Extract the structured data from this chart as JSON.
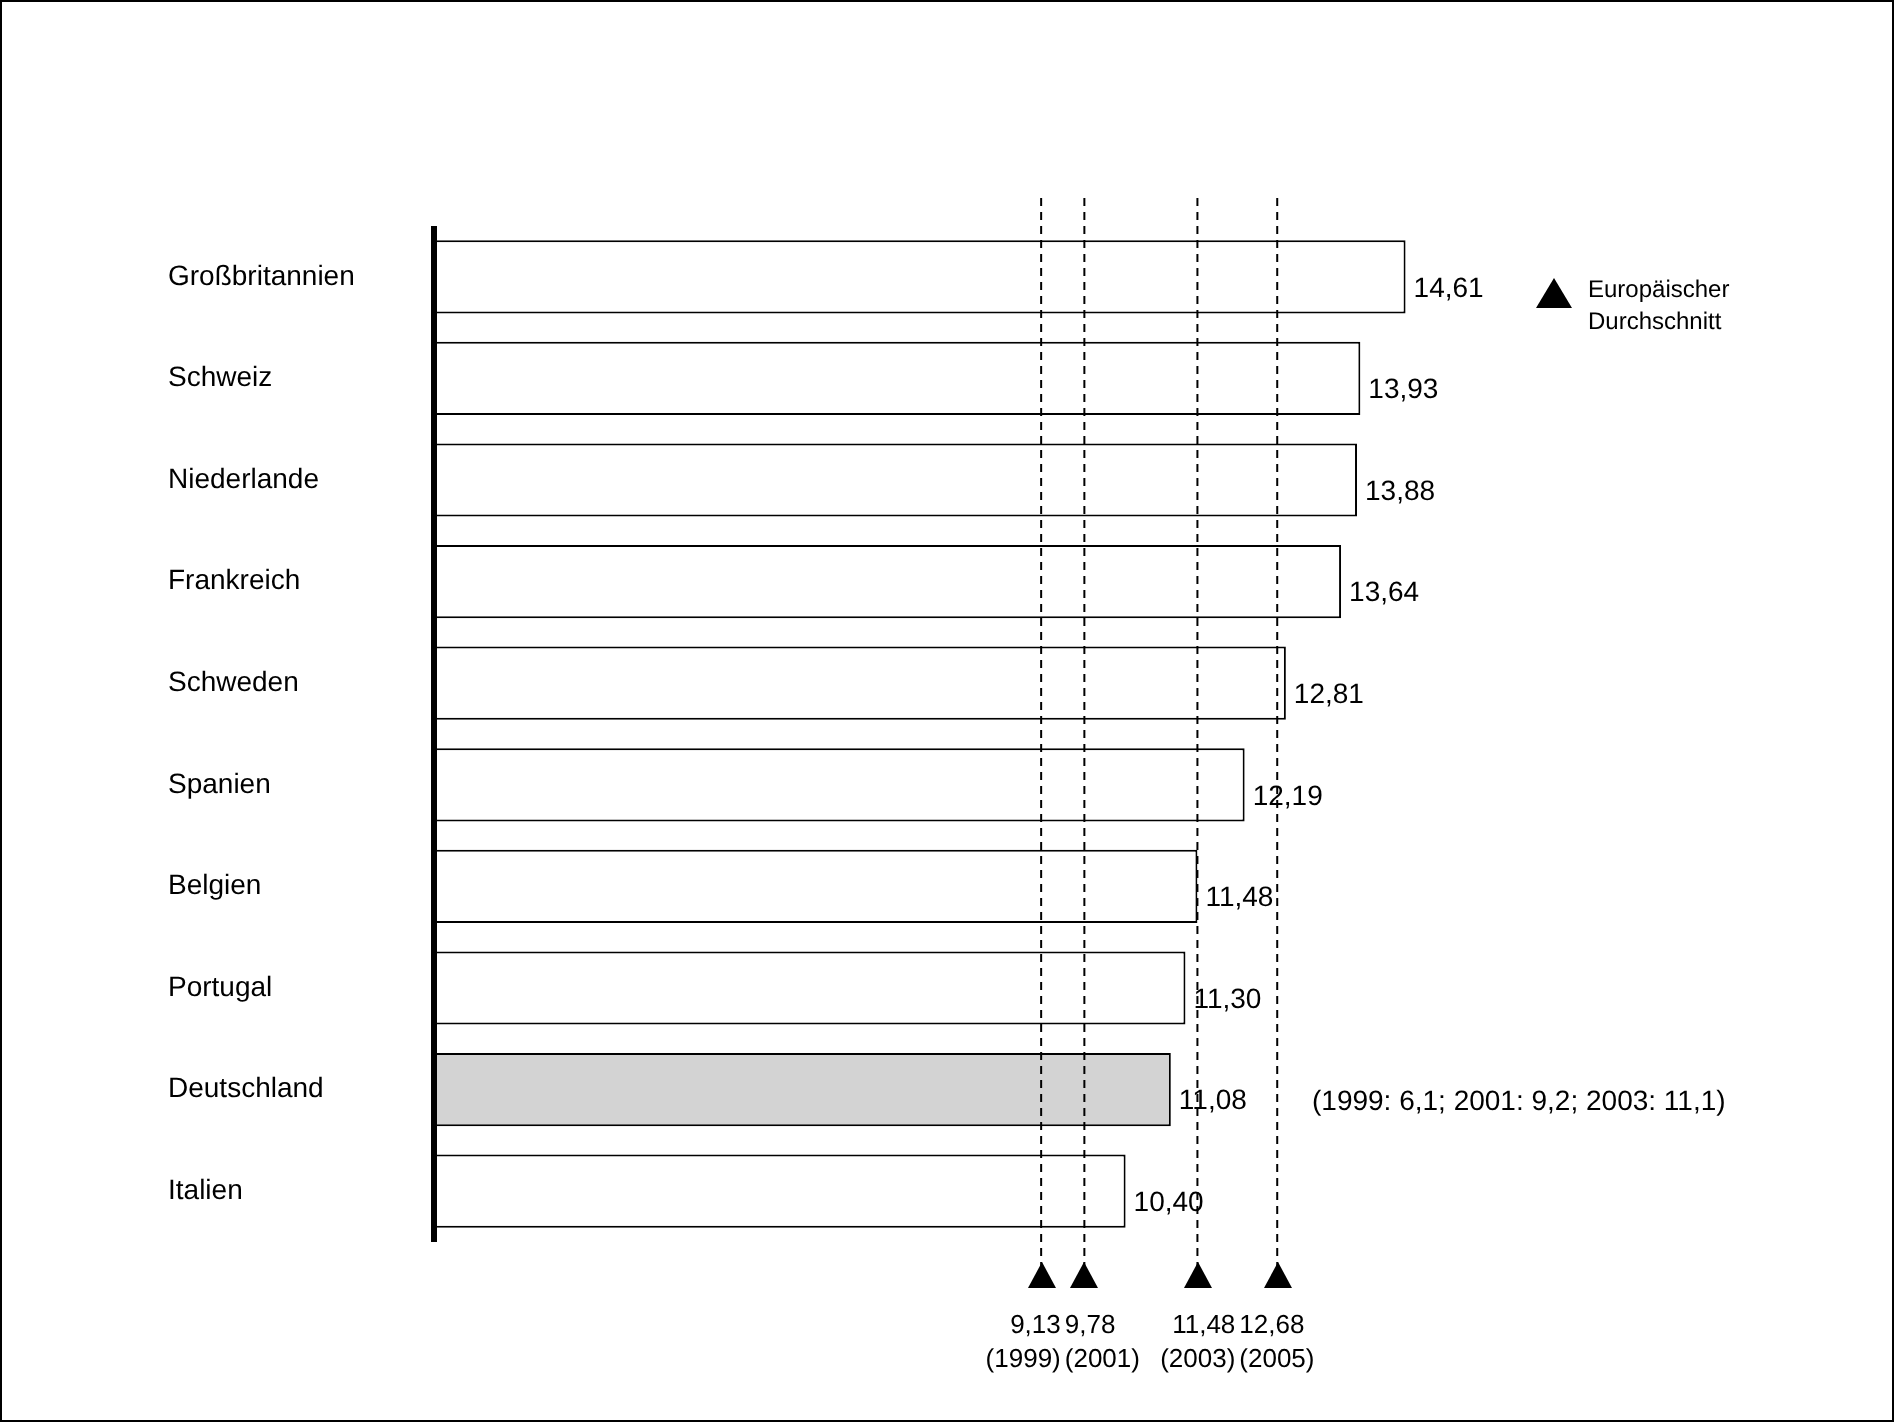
{
  "chart_data": {
    "type": "bar",
    "orientation": "horizontal",
    "categories": [
      "Großbritannien",
      "Schweiz",
      "Niederlande",
      "Frankreich",
      "Schweden",
      "Spanien",
      "Belgien",
      "Portugal",
      "Deutschland",
      "Italien"
    ],
    "values": [
      14.61,
      13.93,
      13.88,
      13.64,
      12.81,
      12.19,
      11.48,
      11.3,
      11.08,
      10.4
    ],
    "value_labels": [
      "14,61",
      "13,93",
      "13,88",
      "13,64",
      "12,81",
      "12,19",
      "11,48",
      "11,30",
      "11,08",
      "10,40"
    ],
    "colors": [
      "#ffffff",
      "#ffffff",
      "#ffffff",
      "#ffffff",
      "#ffffff",
      "#ffffff",
      "#ffffff",
      "#ffffff",
      "#d3d3d3",
      "#ffffff"
    ],
    "ref_lines": [
      {
        "axis": "x",
        "value": 9.13,
        "label": "9,13 (1999)",
        "line_style": "dashed",
        "color": "#000000"
      },
      {
        "axis": "x",
        "value": 9.78,
        "label": "9,78 (2001)",
        "line_style": "dashed",
        "color": "#000000"
      },
      {
        "axis": "x",
        "value": 11.48,
        "label": "11,48 (2003)",
        "line_style": "dashed",
        "color": "#000000"
      },
      {
        "axis": "x",
        "value": 12.68,
        "label": "12,68 (2005)",
        "line_style": "dashed",
        "color": "#000000"
      }
    ],
    "annotations": [
      "Europäischer Durchschnitt",
      "(1999: 6,1; 2001: 9,2; 2003: 11,1)"
    ],
    "grid": false,
    "legend": false
  }
}
